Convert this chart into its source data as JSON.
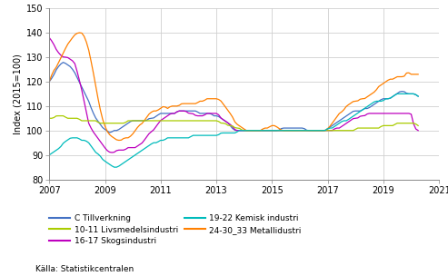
{
  "ylabel": "Index (2015=100)",
  "ylim": [
    80,
    150
  ],
  "yticks": [
    80,
    90,
    100,
    110,
    120,
    130,
    140,
    150
  ],
  "xlim": [
    2007.0,
    2021.0
  ],
  "xticks": [
    2007,
    2009,
    2011,
    2013,
    2015,
    2017,
    2019,
    2021
  ],
  "source": "Källa: Statistikcentralen",
  "background_color": "#ffffff",
  "grid_color": "#d0d0d0",
  "series": [
    {
      "label": "C Tillverkning",
      "color": "#4472C4",
      "data": [
        120,
        122,
        125,
        127,
        128,
        127,
        126,
        124,
        121,
        118,
        115,
        112,
        108,
        105,
        103,
        101,
        100,
        99,
        100,
        100,
        101,
        102,
        103,
        104,
        104,
        104,
        104,
        104,
        105,
        105,
        106,
        107,
        107,
        107,
        107,
        107,
        108,
        108,
        108,
        108,
        108,
        108,
        107,
        107,
        107,
        107,
        106,
        106,
        105,
        104,
        103,
        101,
        100,
        100,
        100,
        100,
        100,
        100,
        100,
        100,
        100,
        100,
        100,
        100,
        100,
        101,
        101,
        101,
        101,
        101,
        101,
        101,
        100,
        100,
        100,
        100,
        100,
        100,
        101,
        102,
        103,
        104,
        105,
        106,
        107,
        108,
        108,
        108,
        109,
        109,
        110,
        111,
        112,
        113,
        113,
        113,
        114,
        115,
        116,
        116,
        115,
        115,
        115,
        114
      ]
    },
    {
      "label": "16-17 Skogsindustri",
      "color": "#BE00BE",
      "data": [
        138,
        136,
        133,
        131,
        130,
        130,
        129,
        128,
        123,
        117,
        110,
        103,
        100,
        98,
        96,
        94,
        92,
        91,
        91,
        92,
        92,
        92,
        93,
        93,
        93,
        94,
        95,
        97,
        99,
        100,
        102,
        104,
        105,
        106,
        107,
        107,
        108,
        108,
        108,
        107,
        107,
        106,
        106,
        106,
        107,
        107,
        107,
        107,
        105,
        104,
        103,
        102,
        100,
        100,
        100,
        100,
        100,
        100,
        100,
        100,
        100,
        100,
        100,
        100,
        100,
        100,
        100,
        100,
        100,
        100,
        100,
        100,
        100,
        100,
        100,
        100,
        100,
        100,
        100,
        100,
        101,
        101,
        102,
        103,
        104,
        105,
        105,
        106,
        106,
        107,
        107,
        107,
        107,
        107,
        107,
        107,
        107,
        107,
        107,
        107,
        107,
        107,
        101,
        100
      ]
    },
    {
      "label": "24-30_33 Metallidustri",
      "color": "#FF8000",
      "data": [
        120,
        124,
        126,
        129,
        132,
        135,
        137,
        139,
        140,
        140,
        138,
        133,
        126,
        118,
        110,
        104,
        100,
        98,
        97,
        96,
        96,
        97,
        97,
        98,
        100,
        102,
        103,
        105,
        107,
        108,
        108,
        109,
        110,
        109,
        110,
        110,
        110,
        111,
        111,
        111,
        111,
        111,
        112,
        112,
        113,
        113,
        113,
        113,
        112,
        110,
        108,
        106,
        103,
        102,
        101,
        100,
        100,
        100,
        100,
        100,
        101,
        101,
        102,
        102,
        101,
        100,
        100,
        100,
        100,
        100,
        100,
        100,
        100,
        100,
        100,
        100,
        100,
        100,
        101,
        103,
        105,
        107,
        108,
        110,
        111,
        112,
        112,
        113,
        113,
        114,
        115,
        116,
        118,
        119,
        120,
        121,
        121,
        122,
        122,
        122,
        124,
        123,
        123,
        123
      ]
    },
    {
      "label": "10-11 Livsmedelsindustri",
      "color": "#AACC00",
      "data": [
        105,
        105,
        106,
        106,
        106,
        105,
        105,
        105,
        105,
        104,
        104,
        104,
        104,
        104,
        103,
        103,
        103,
        103,
        103,
        103,
        103,
        103,
        104,
        104,
        104,
        104,
        104,
        104,
        104,
        104,
        104,
        104,
        104,
        104,
        104,
        104,
        104,
        104,
        104,
        104,
        104,
        104,
        104,
        104,
        104,
        104,
        104,
        104,
        103,
        103,
        102,
        102,
        101,
        101,
        100,
        100,
        100,
        100,
        100,
        100,
        100,
        100,
        100,
        100,
        100,
        100,
        100,
        100,
        100,
        100,
        100,
        100,
        100,
        100,
        100,
        100,
        100,
        100,
        100,
        100,
        100,
        100,
        100,
        100,
        100,
        100,
        101,
        101,
        101,
        101,
        101,
        101,
        101,
        102,
        102,
        102,
        102,
        103,
        103,
        103,
        103,
        103,
        103,
        102
      ]
    },
    {
      "label": "19-22 Kemisk industri",
      "color": "#00BBBB",
      "data": [
        90,
        91,
        92,
        93,
        95,
        96,
        97,
        97,
        97,
        96,
        96,
        95,
        93,
        91,
        90,
        88,
        87,
        86,
        85,
        85,
        86,
        87,
        88,
        89,
        90,
        91,
        92,
        93,
        94,
        95,
        95,
        96,
        96,
        97,
        97,
        97,
        97,
        97,
        97,
        97,
        98,
        98,
        98,
        98,
        98,
        98,
        98,
        98,
        99,
        99,
        99,
        99,
        99,
        100,
        100,
        100,
        100,
        100,
        100,
        100,
        100,
        100,
        100,
        100,
        100,
        100,
        100,
        100,
        100,
        100,
        100,
        100,
        100,
        100,
        100,
        100,
        100,
        100,
        101,
        101,
        102,
        103,
        104,
        104,
        105,
        106,
        107,
        108,
        109,
        110,
        111,
        112,
        112,
        112,
        113,
        113,
        114,
        115,
        115,
        115,
        115,
        115,
        115,
        114
      ]
    }
  ]
}
